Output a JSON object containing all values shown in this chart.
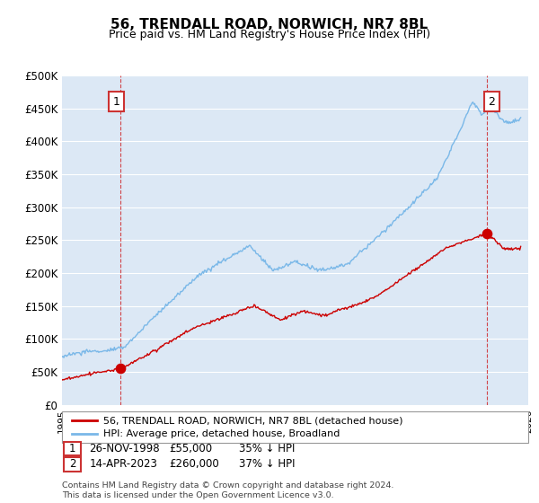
{
  "title": "56, TRENDALL ROAD, NORWICH, NR7 8BL",
  "subtitle": "Price paid vs. HM Land Registry's House Price Index (HPI)",
  "background_color": "#ffffff",
  "plot_background": "#dce8f5",
  "grid_color": "#ffffff",
  "hpi_color": "#7ab8e8",
  "price_color": "#cc0000",
  "sale1_date": "26-NOV-1998",
  "sale1_price": 55000,
  "sale1_label": "35% ↓ HPI",
  "sale1_year": 1998.9,
  "sale2_date": "14-APR-2023",
  "sale2_price": 260000,
  "sale2_label": "37% ↓ HPI",
  "sale2_year": 2023.28,
  "xmin": 1995,
  "xmax": 2026,
  "ymin": 0,
  "ymax": 500000,
  "yticks": [
    0,
    50000,
    100000,
    150000,
    200000,
    250000,
    300000,
    350000,
    400000,
    450000,
    500000
  ],
  "ytick_labels": [
    "£0",
    "£50K",
    "£100K",
    "£150K",
    "£200K",
    "£250K",
    "£300K",
    "£350K",
    "£400K",
    "£450K",
    "£500K"
  ],
  "legend_line1": "56, TRENDALL ROAD, NORWICH, NR7 8BL (detached house)",
  "legend_line2": "HPI: Average price, detached house, Broadland",
  "footer": "Contains HM Land Registry data © Crown copyright and database right 2024.\nThis data is licensed under the Open Government Licence v3.0.",
  "annotation1": "1",
  "annotation2": "2"
}
